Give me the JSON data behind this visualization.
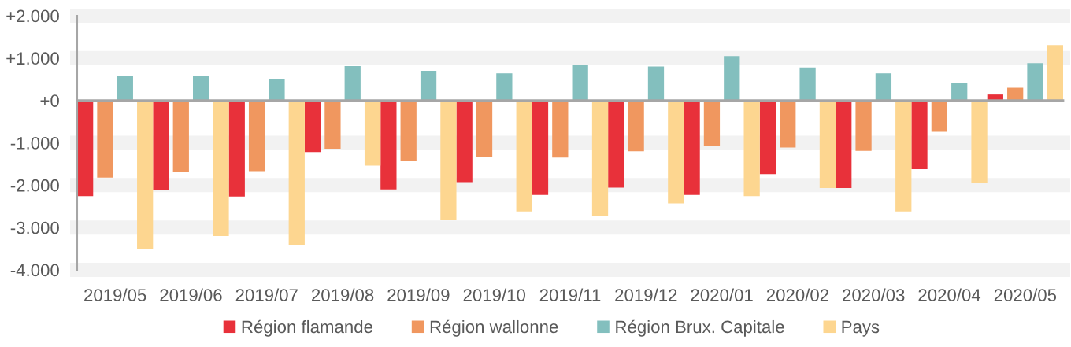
{
  "chart_data": {
    "type": "bar",
    "categories": [
      "2019/05",
      "2019/06",
      "2019/07",
      "2019/08",
      "2019/09",
      "2019/10",
      "2019/11",
      "2019/12",
      "2020/01",
      "2020/02",
      "2020/03",
      "2020/04",
      "2020/05"
    ],
    "series": [
      {
        "name": "Région flamande",
        "color": "#e8313a",
        "values": [
          -2260,
          -2110,
          -2270,
          -1220,
          -2100,
          -1930,
          -2230,
          -2060,
          -2230,
          -1740,
          -2070,
          -1620,
          140
        ]
      },
      {
        "name": "Région wallonne",
        "color": "#f0975f",
        "values": [
          -1820,
          -1680,
          -1670,
          -1140,
          -1430,
          -1340,
          -1350,
          -1200,
          -1080,
          -1110,
          -1190,
          -740,
          300
        ]
      },
      {
        "name": "Région Brux. Capitale",
        "color": "#83bfbe",
        "values": [
          570,
          570,
          510,
          810,
          700,
          640,
          850,
          800,
          1050,
          780,
          640,
          410,
          880
        ]
      },
      {
        "name": "Pays",
        "color": "#fdd690",
        "values": [
          -3500,
          -3200,
          -3410,
          -1540,
          -2830,
          -2620,
          -2730,
          -2430,
          -2260,
          -2070,
          -2620,
          -1940,
          1310
        ]
      }
    ],
    "ylim": [
      -4000,
      2000
    ],
    "yticks": [
      {
        "value": 2000,
        "label": "+2.000"
      },
      {
        "value": 1000,
        "label": "+1.000"
      },
      {
        "value": 0,
        "label": "+0"
      },
      {
        "value": -1000,
        "label": "-1.000"
      },
      {
        "value": -2000,
        "label": "-2.000"
      },
      {
        "value": -3000,
        "label": "-3.000"
      },
      {
        "value": -4000,
        "label": "-4.000"
      }
    ],
    "grid": "y",
    "legend": "bottom"
  }
}
